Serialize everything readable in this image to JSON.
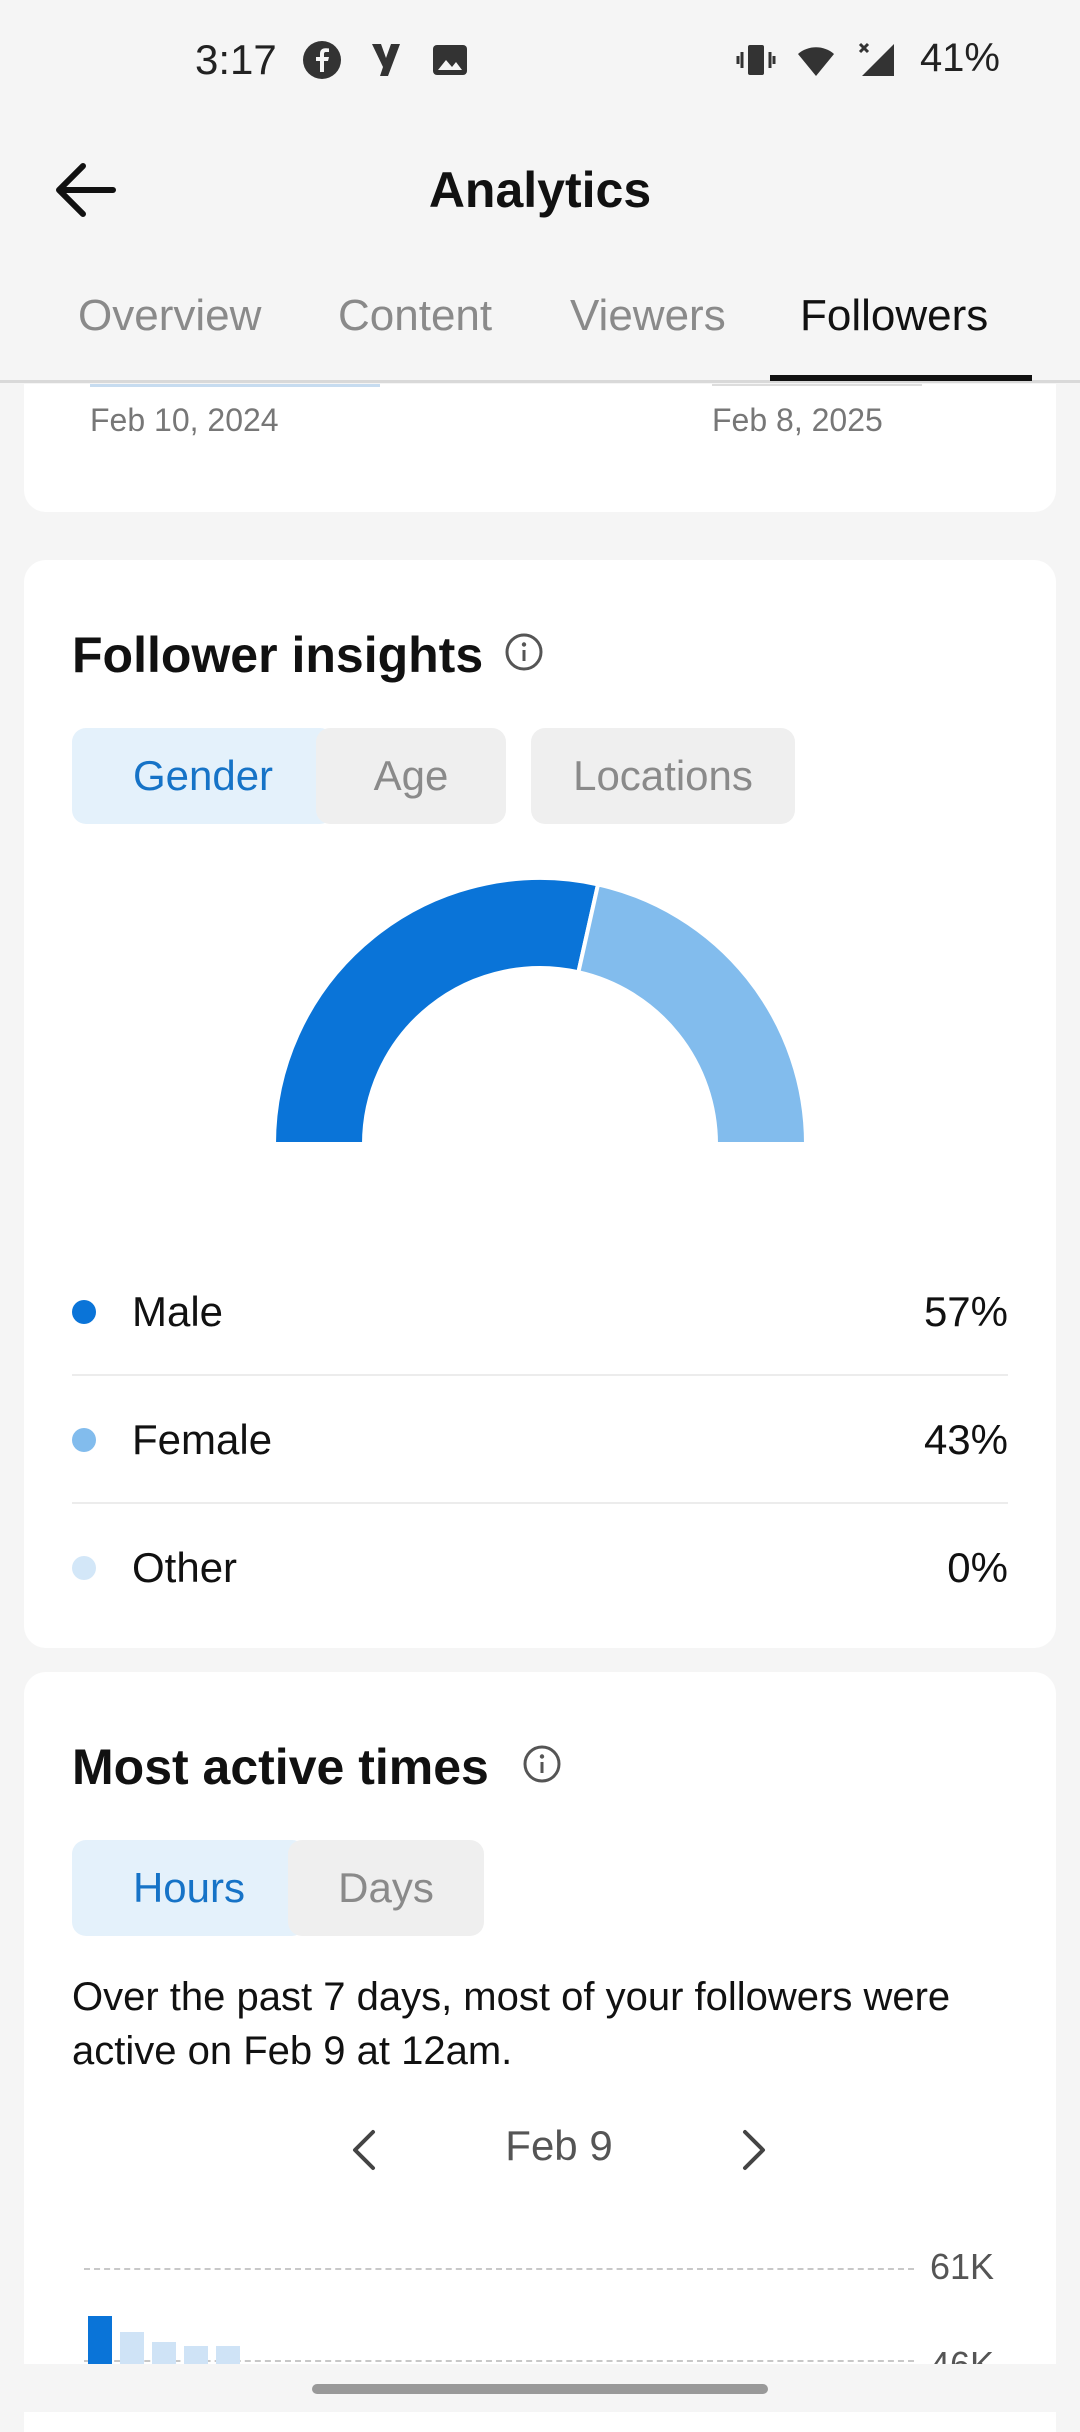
{
  "status_bar": {
    "time": "3:17",
    "battery": "41%",
    "icons": [
      "facebook-icon",
      "app-y-icon",
      "image-icon",
      "vibrate-icon",
      "wifi-icon",
      "signal-icon"
    ]
  },
  "header": {
    "title": "Analytics"
  },
  "tabs": [
    {
      "label": "Overview",
      "active": false
    },
    {
      "label": "Content",
      "active": false
    },
    {
      "label": "Viewers",
      "active": false
    },
    {
      "label": "Followers",
      "active": true
    }
  ],
  "date_range": {
    "start": "Feb 10, 2024",
    "end": "Feb 8, 2025"
  },
  "follower_insights": {
    "title": "Follower insights",
    "chips": [
      {
        "label": "Gender",
        "active": true
      },
      {
        "label": "Age",
        "active": false
      },
      {
        "label": "Locations",
        "active": false
      }
    ],
    "legend": [
      {
        "label": "Male",
        "value": "57%",
        "fraction": 0.57,
        "color": "#0a74d8"
      },
      {
        "label": "Female",
        "value": "43%",
        "fraction": 0.43,
        "color": "#82bced"
      },
      {
        "label": "Other",
        "value": "0%",
        "fraction": 0.0,
        "color": "#d3e7f8"
      }
    ]
  },
  "most_active": {
    "title": "Most active times",
    "chips": [
      {
        "label": "Hours",
        "active": true
      },
      {
        "label": "Days",
        "active": false
      }
    ],
    "summary": "Over the past 7 days, most of your followers were active on Feb 9 at 12am.",
    "nav_date": "Feb 9",
    "ticks": [
      "61K",
      "46K"
    ]
  },
  "colors": {
    "accent": "#1673c7",
    "male": "#0a74d8",
    "female": "#82bced",
    "other": "#d3e7f8"
  }
}
